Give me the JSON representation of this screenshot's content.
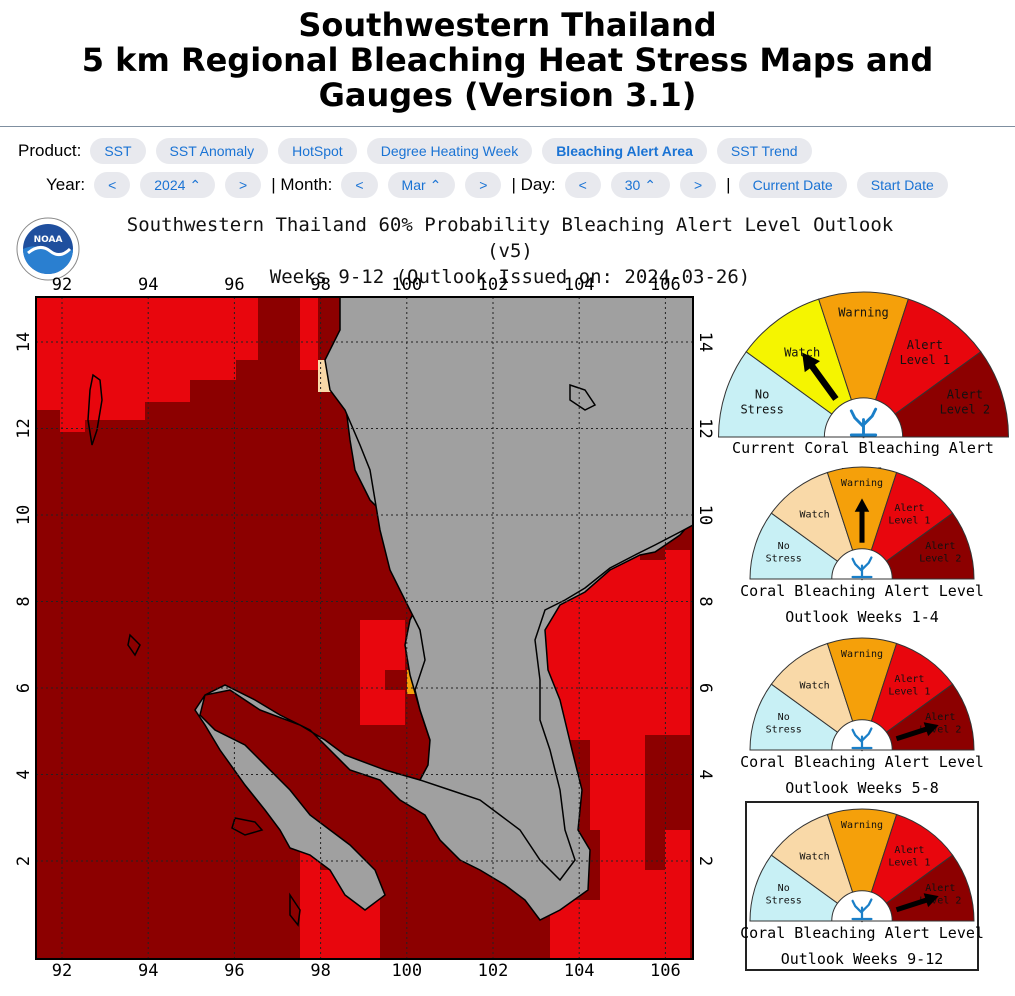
{
  "header": {
    "title_line1": "Southwestern Thailand",
    "title_line2": "5 km Regional Bleaching Heat Stress Maps and",
    "title_line3": "Gauges (Version 3.1)"
  },
  "product_selector": {
    "label": "Product:",
    "options": [
      "SST",
      "SST Anomaly",
      "HotSpot",
      "Degree Heating Week",
      "Bleaching Alert Area",
      "SST Trend"
    ],
    "selected": "Bleaching Alert Area"
  },
  "date_selector": {
    "year_label": "Year:",
    "year_value": "2024",
    "month_label": "| Month:",
    "month_value": "Mar",
    "day_label": "| Day:",
    "day_value": "30",
    "sep": "|",
    "prev": "<",
    "next": ">",
    "current_date_label": "Current Date",
    "start_date_label": "Start Date"
  },
  "map": {
    "title_line1": "Southwestern Thailand 60% Probability Bleaching Alert Level Outlook (v5)",
    "title_line2": "Weeks 9-12 (Outlook Issued on: 2024-03-26)",
    "logo_text": "NOAA",
    "lon_ticks": [
      "92",
      "94",
      "96",
      "98",
      "100",
      "102",
      "104",
      "106"
    ],
    "lat_ticks": [
      "14",
      "12",
      "10",
      "8",
      "6",
      "4",
      "2"
    ],
    "colors": {
      "no_stress": "#c8f0f5",
      "watch": "#f5f500",
      "watch_light": "#f9d9a8",
      "warning": "#f5a00a",
      "alert1": "#e8060d",
      "alert2": "#8c0000",
      "land": "#a0a0a0"
    }
  },
  "gauges": {
    "level_labels": {
      "no_stress_1": "No",
      "no_stress_2": "Stress",
      "watch": "Watch",
      "warning": "Warning",
      "alert1_1": "Alert",
      "alert1_2": "Level 1",
      "alert2_1": "Alert",
      "alert2_2": "Level 2"
    },
    "current": {
      "caption": "Current Coral Bleaching Alert Level",
      "level": "Watch"
    },
    "outlook_1_4": {
      "caption1": "Coral Bleaching Alert Level",
      "caption2": "Outlook Weeks 1-4",
      "level": "Warning"
    },
    "outlook_5_8": {
      "caption1": "Coral Bleaching Alert Level",
      "caption2": "Outlook Weeks 5-8",
      "level": "Alert Level 2"
    },
    "outlook_9_12": {
      "caption1": "Coral Bleaching Alert Level",
      "caption2": "Outlook Weeks 9-12",
      "level": "Alert Level 2"
    }
  }
}
